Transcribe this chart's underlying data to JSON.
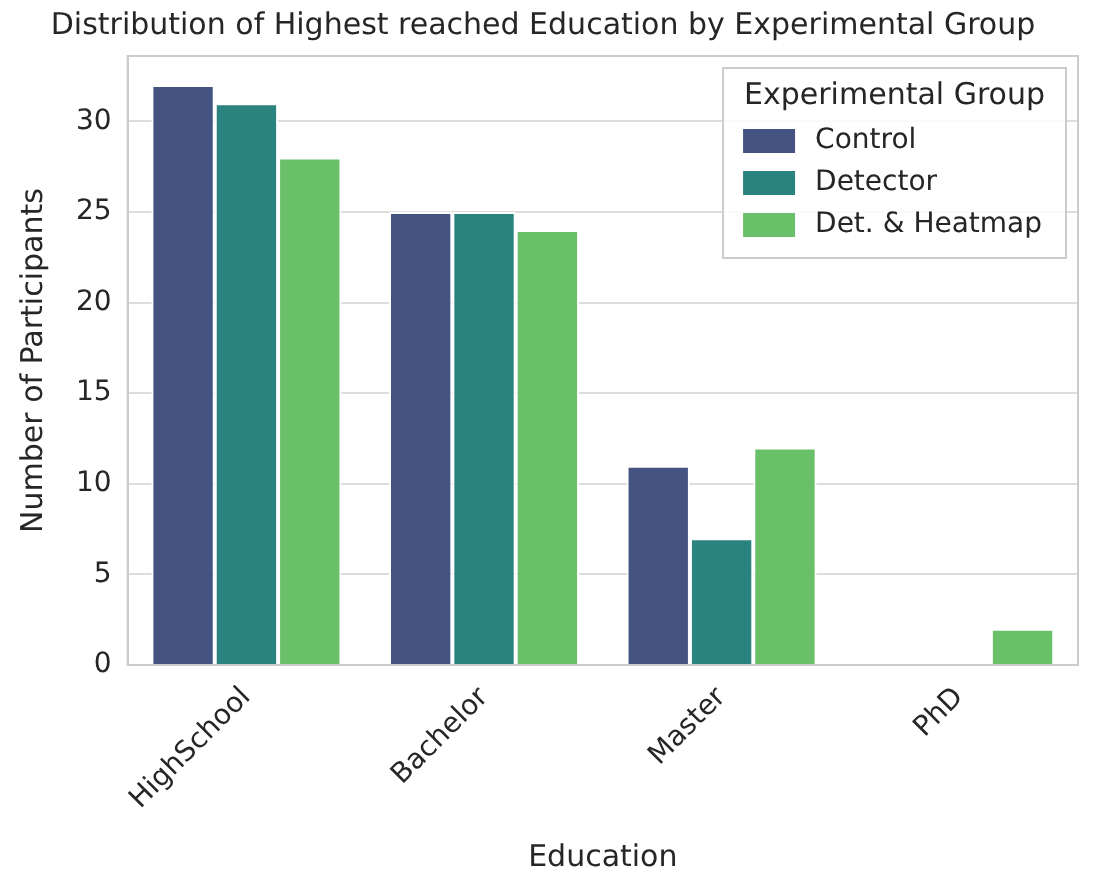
{
  "chart_data": {
    "type": "bar",
    "title": "Distribution of Highest reached Education by Experimental Group",
    "xlabel": "Education",
    "ylabel": "Number of Participants",
    "legend_title": "Experimental Group",
    "categories": [
      "HighSchool",
      "Bachelor",
      "Master",
      "PhD"
    ],
    "series": [
      {
        "name": "Control",
        "color": "#455381",
        "values": [
          32,
          25,
          11,
          0
        ]
      },
      {
        "name": "Detector",
        "color": "#2b8380",
        "values": [
          31,
          25,
          7,
          0
        ]
      },
      {
        "name": "Det. & Heatmap",
        "color": "#6abf69",
        "values": [
          28,
          24,
          12,
          2
        ]
      }
    ],
    "ylim": [
      0,
      33.6
    ],
    "yticks": [
      0,
      5,
      10,
      15,
      20,
      25,
      30
    ],
    "grid": "y",
    "legend": "top right"
  }
}
